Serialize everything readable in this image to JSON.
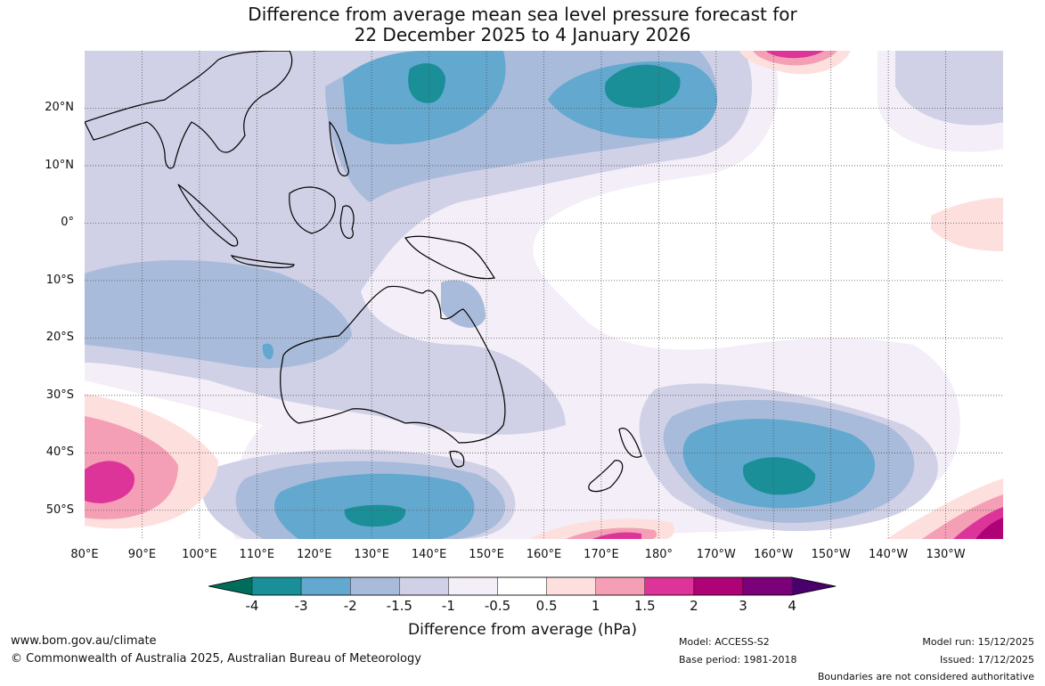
{
  "title": {
    "line1": "Difference from average mean sea level pressure forecast for",
    "line2": "22 December 2025 to 4 January 2026"
  },
  "map": {
    "lat_labels": [
      "20°N",
      "10°N",
      "0°",
      "10°S",
      "20°S",
      "30°S",
      "40°S",
      "50°S"
    ],
    "lon_labels": [
      "80°E",
      "90°E",
      "100°E",
      "110°E",
      "120°E",
      "130°E",
      "140°E",
      "150°E",
      "160°E",
      "170°E",
      "180°",
      "170°W",
      "160°W",
      "150°W",
      "140°W",
      "130°W"
    ],
    "extent": {
      "lon": [
        80,
        240
      ],
      "lat": [
        -55,
        30
      ]
    }
  },
  "colorbar": {
    "ticks": [
      "-4",
      "-3",
      "-2",
      "-1.5",
      "-1",
      "-0.5",
      "0.5",
      "1",
      "1.5",
      "2",
      "3",
      "4"
    ],
    "colors": [
      "#006d5b",
      "#1a8f98",
      "#63a8cf",
      "#a9bbdb",
      "#d0d1e6",
      "#f3eef7",
      "#ffffff",
      "#fde0de",
      "#f49fb5",
      "#dd3499",
      "#ae0276",
      "#7a0177",
      "#49006a"
    ],
    "label": "Difference from average (hPa)"
  },
  "footer": {
    "website": "www.bom.gov.au/climate",
    "copyright": "© Commonwealth of Australia 2025, Australian Bureau of Meteorology",
    "model": "Model: ACCESS-S2",
    "base_period": "Base period: 1981-2018",
    "model_run": "Model run: 15/12/2025",
    "issued": "Issued: 17/12/2025",
    "disclaimer": "Boundaries are not considered authoritative"
  }
}
